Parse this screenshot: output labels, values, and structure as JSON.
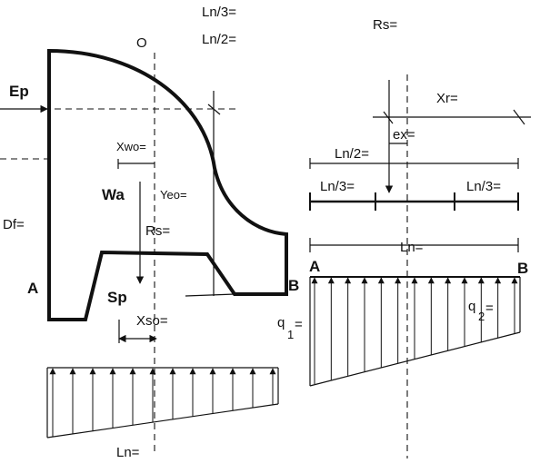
{
  "labels": {
    "ln3_top": "Ln/3=",
    "ln2_top": "Ln/2=",
    "rs_top": "Rs=",
    "o": "O",
    "ep": "Ep",
    "xwo": "Xwo=",
    "wa": "Wa",
    "yeo": "Yeo=",
    "df": "Df=",
    "rs_mid": "Rs=",
    "a_left": "A",
    "sp": "Sp",
    "b_left": "B",
    "xso": "Xso=",
    "ln_bottom": "Ln=",
    "xr": "Xr=",
    "ex": "ex=",
    "ln2_right": "Ln/2=",
    "ln3_right_a": "Ln/3=",
    "ln3_right_b": "Ln/3=",
    "ln_right": "Ln=",
    "a_right": "A",
    "b_right": "B",
    "q1": "q",
    "q1_sub": "1",
    "q1_eq": "=",
    "q2": "q",
    "q2_sub": "2",
    "q2_eq": "="
  }
}
